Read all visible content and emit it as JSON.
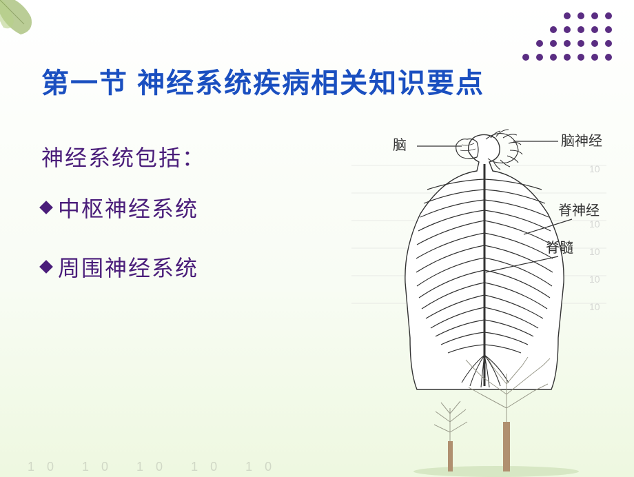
{
  "title": "第一节 神经系统疾病相关知识要点",
  "subtitle": "神经系统包括：",
  "bullets": [
    "中枢神经系统",
    "周围神经系统"
  ],
  "diagram_labels": {
    "brain": "脑",
    "cranial_nerve": "脑神经",
    "spinal_nerve": "脊神经",
    "spinal_cord": "脊髓"
  },
  "colors": {
    "title": "#1a4fc0",
    "body_text": "#4a1d7a",
    "dot": "#5a2d82",
    "bg_top": "#ffffff",
    "bg_bottom": "#eef8e0",
    "diagram_line": "#333333",
    "tree_trunk": "#8a6a4a",
    "tree_foliage": "#7a8a6a"
  },
  "dot_pattern": [
    [
      0,
      0,
      0,
      1,
      1,
      1,
      1
    ],
    [
      0,
      0,
      1,
      1,
      1,
      1,
      1
    ],
    [
      0,
      1,
      1,
      1,
      1,
      1,
      1
    ],
    [
      1,
      1,
      1,
      1,
      1,
      1,
      1
    ]
  ],
  "ghost_text": "10   10   10   10   10"
}
